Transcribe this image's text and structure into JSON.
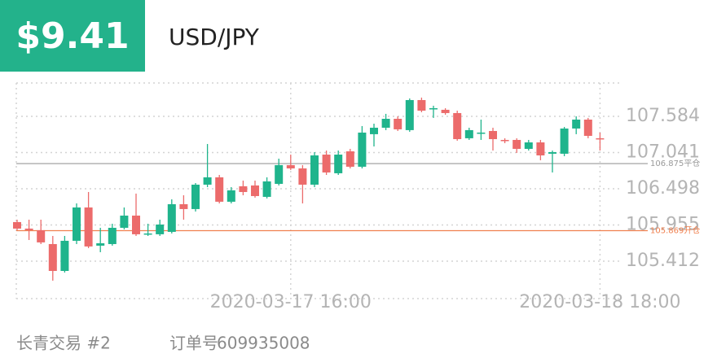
{
  "header": {
    "price": "$9.41",
    "symbol": "USD/JPY"
  },
  "chart_data": {
    "type": "candlestick",
    "categories": [
      null,
      null,
      null,
      null,
      null,
      null,
      null,
      null,
      null,
      null,
      null,
      null,
      null,
      null,
      null,
      null,
      null,
      null,
      null,
      null,
      null,
      null,
      null,
      "2020-03-17 16:00",
      null,
      null,
      null,
      null,
      null,
      null,
      null,
      null,
      null,
      null,
      null,
      null,
      null,
      null,
      null,
      null,
      null,
      null,
      null,
      null,
      null,
      null,
      null,
      null,
      null,
      "2020-03-18 18:00"
    ],
    "open": [
      105.998,
      105.9,
      105.876,
      105.668,
      105.265,
      105.717,
      106.217,
      105.644,
      105.668,
      105.912,
      106.095,
      105.815,
      105.815,
      105.851,
      106.266,
      106.193,
      106.559,
      106.669,
      106.303,
      106.535,
      106.547,
      106.376,
      106.571,
      106.852,
      106.803,
      106.559,
      107.01,
      106.73,
      107.059,
      106.828,
      107.316,
      107.413,
      107.547,
      107.377,
      107.828,
      107.694,
      107.682,
      107.633,
      107.255,
      107.328,
      107.364,
      107.23,
      107.23,
      107.096,
      107.193,
      107.023,
      107.023,
      107.401,
      107.535,
      107.255
    ],
    "high": [
      106.034,
      106.034,
      106.034,
      105.79,
      105.79,
      106.278,
      106.449,
      105.912,
      105.973,
      106.217,
      106.425,
      105.973,
      106.034,
      106.339,
      106.4,
      106.583,
      107.169,
      106.705,
      106.522,
      106.62,
      106.62,
      106.669,
      106.949,
      107.01,
      106.852,
      107.047,
      107.071,
      107.071,
      107.096,
      107.438,
      107.474,
      107.621,
      107.584,
      107.852,
      107.865,
      107.743,
      107.706,
      107.669,
      107.413,
      107.535,
      107.413,
      107.255,
      107.255,
      107.23,
      107.23,
      107.071,
      107.425,
      107.584,
      107.56,
      107.34
    ],
    "low": [
      105.876,
      105.729,
      105.668,
      105.119,
      105.241,
      105.668,
      105.607,
      105.546,
      105.644,
      105.888,
      105.79,
      105.79,
      105.79,
      105.827,
      106.034,
      106.156,
      106.522,
      106.278,
      106.278,
      106.4,
      106.364,
      106.352,
      106.547,
      106.779,
      106.278,
      106.522,
      106.705,
      106.705,
      106.803,
      106.803,
      107.132,
      107.377,
      107.364,
      107.352,
      107.645,
      107.56,
      107.608,
      107.218,
      107.23,
      107.23,
      107.071,
      107.181,
      107.035,
      107.071,
      106.925,
      106.742,
      106.986,
      107.316,
      107.255,
      107.071
    ],
    "close": [
      105.9,
      105.876,
      105.693,
      105.265,
      105.717,
      106.217,
      105.632,
      105.68,
      105.912,
      106.095,
      105.815,
      105.827,
      105.961,
      106.266,
      106.193,
      106.559,
      106.669,
      106.303,
      106.474,
      106.449,
      106.388,
      106.608,
      106.852,
      106.803,
      106.559,
      106.998,
      106.742,
      107.01,
      106.828,
      107.34,
      107.413,
      107.547,
      107.389,
      107.828,
      107.669,
      107.706,
      107.633,
      107.242,
      107.377,
      107.34,
      107.242,
      107.218,
      107.096,
      107.193,
      106.998,
      107.047,
      107.401,
      107.535,
      107.291,
      107.242
    ],
    "up_color": "#1fb48c",
    "down_color": "#ec6b6b",
    "ylim": [
      104.85,
      108.084
    ],
    "yticks": [
      107.584,
      107.041,
      106.498,
      105.955,
      105.412
    ],
    "grid": true,
    "reference_lines": [
      {
        "value": 106.875,
        "label": "106.875平仓",
        "color": "#9a9a9a"
      },
      {
        "value": 105.869,
        "label": "105.869开仓",
        "color": "#f0804f"
      }
    ]
  },
  "footer": {
    "account": "长青交易 #2",
    "order_label": "订单号",
    "order_id": "609935008"
  }
}
